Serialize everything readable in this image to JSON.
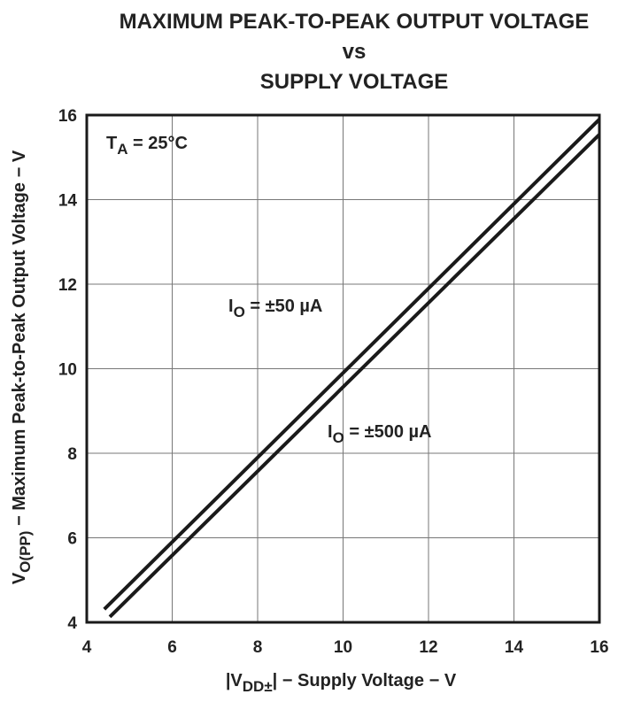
{
  "chart_data": {
    "type": "line",
    "title": [
      "MAXIMUM PEAK-TO-PEAK OUTPUT VOLTAGE",
      "vs",
      "SUPPLY VOLTAGE"
    ],
    "xlabel": {
      "main": "|V",
      "sub": "DD±",
      "rest": "| − Supply Voltage − V"
    },
    "ylabel": {
      "main": "V",
      "sub": "O(PP)",
      "rest": " − Maximum Peak-to-Peak Output Voltage − V"
    },
    "annotation": {
      "main": "T",
      "sub": "A",
      "rest": " = 25°C"
    },
    "series": [
      {
        "label": {
          "main": "I",
          "sub": "O",
          "rest": " = ±50 µA"
        },
        "color": "#1a1a1a",
        "x": [
          4.41,
          16
        ],
        "values": [
          4.31,
          15.9
        ]
      },
      {
        "label": {
          "main": "I",
          "sub": "O",
          "rest": " = ±500 µA"
        },
        "color": "#1a1a1a",
        "x": [
          4.54,
          16
        ],
        "values": [
          4.13,
          15.54
        ]
      }
    ],
    "xlim": [
      4,
      16
    ],
    "xticks": [
      4,
      6,
      8,
      10,
      12,
      14,
      16
    ],
    "ylim": [
      4,
      16
    ],
    "yticks": [
      4,
      6,
      8,
      10,
      12,
      14,
      16
    ],
    "grid": true
  }
}
